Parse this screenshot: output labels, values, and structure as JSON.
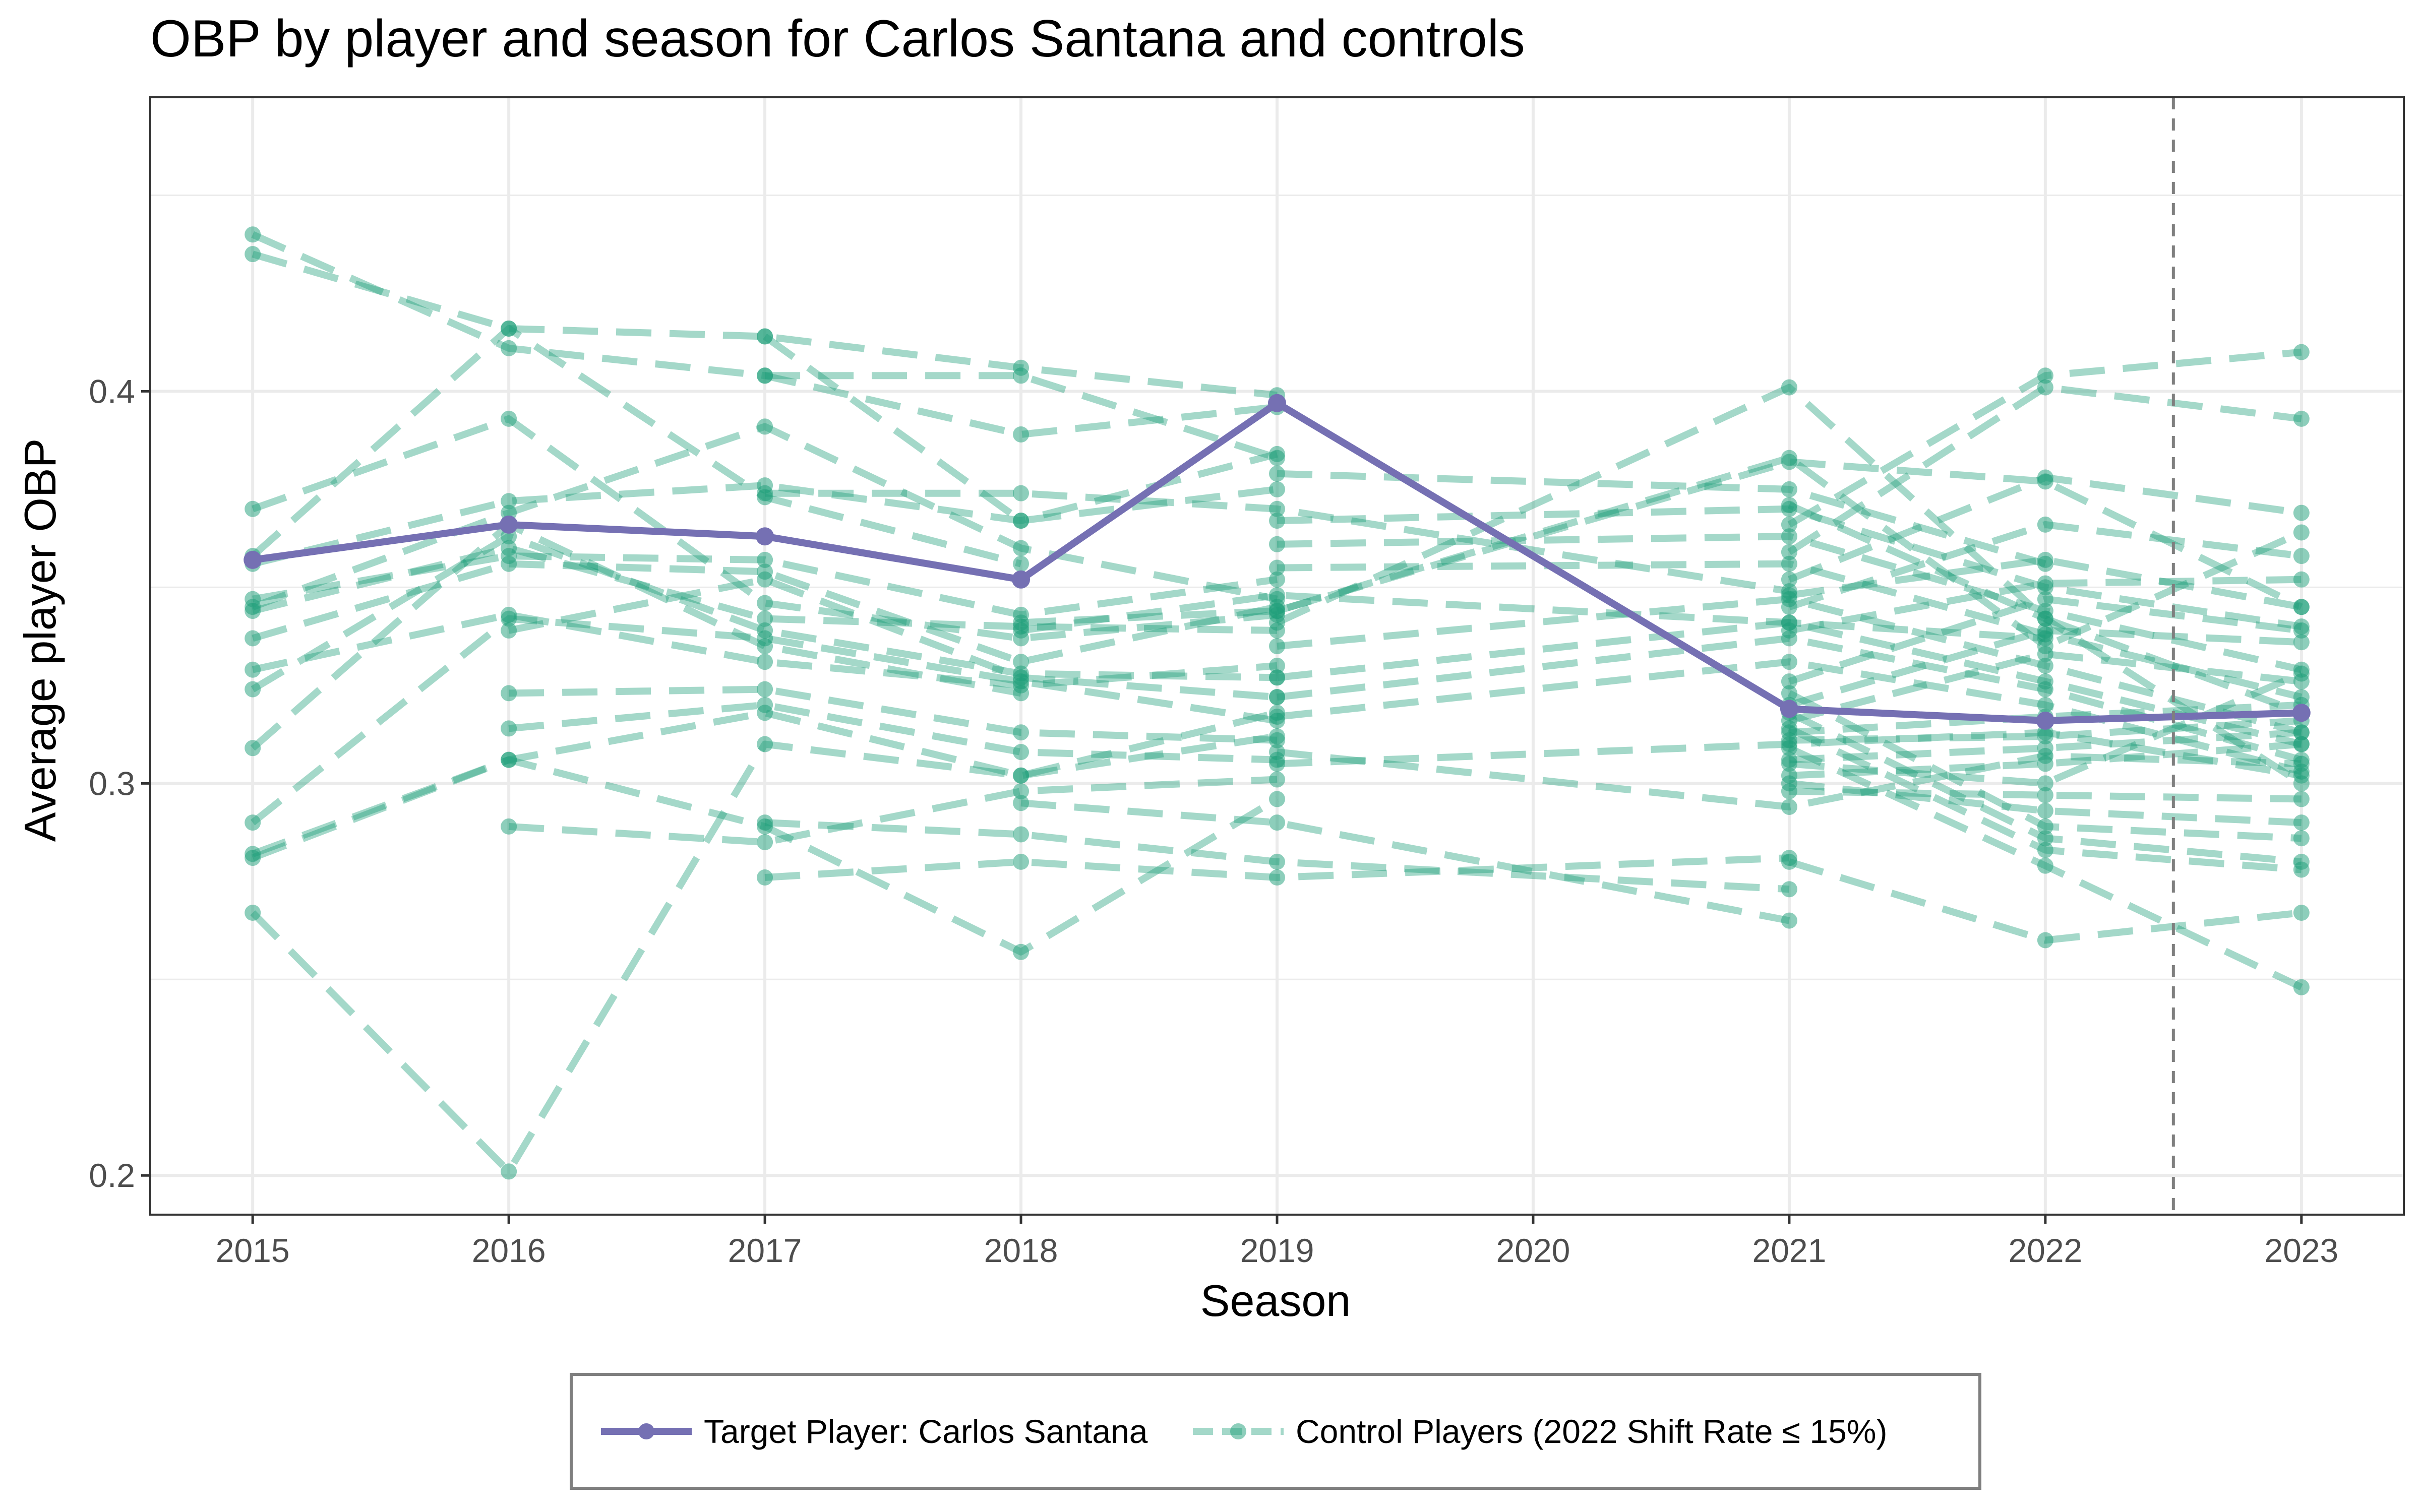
{
  "chart_data": {
    "type": "line",
    "title": "OBP by player and season for Carlos Santana and controls",
    "xlabel": "Season",
    "ylabel": "Average player OBP",
    "x": [
      2015,
      2016,
      2017,
      2018,
      2019,
      2020,
      2021,
      2022,
      2023
    ],
    "xlim": [
      2014.6,
      2023.4
    ],
    "ylim": [
      0.19,
      0.475
    ],
    "yticks": [
      0.2,
      0.3,
      0.4
    ],
    "ytick_labels": [
      "0.2",
      "0.3",
      "0.4"
    ],
    "xtick_labels": [
      "2015",
      "2016",
      "2017",
      "2018",
      "2019",
      "2020",
      "2021",
      "2022",
      "2023"
    ],
    "grid": true,
    "reference_line": {
      "x": 2022.5,
      "style": "dashed"
    },
    "legend_position": "bottom",
    "target": {
      "name": "Target Player: Carlos Santana",
      "color": "#7570b3",
      "points": [
        [
          2015,
          0.357
        ],
        [
          2016,
          0.366
        ],
        [
          2017,
          0.363
        ],
        [
          2018,
          0.352
        ],
        [
          2019,
          0.397
        ],
        [
          2021,
          0.319
        ],
        [
          2022,
          0.316
        ],
        [
          2023,
          0.318
        ]
      ]
    },
    "controls_label": "Control Players (2022 Shift Rate ≤ 15%)",
    "controls_color": "#1b9e77",
    "controls": [
      [
        [
          2015,
          0.44
        ],
        [
          2016,
          0.411
        ],
        [
          2017,
          0.404
        ],
        [
          2018,
          0.389
        ],
        [
          2019,
          0.396
        ]
      ],
      [
        [
          2015,
          0.435
        ],
        [
          2016,
          0.416
        ],
        [
          2017,
          0.414
        ],
        [
          2018,
          0.406
        ],
        [
          2019,
          0.399
        ]
      ],
      [
        [
          2015,
          0.37
        ],
        [
          2016,
          0.393
        ],
        [
          2017,
          0.346
        ],
        [
          2018,
          0.337
        ],
        [
          2019,
          0.343
        ]
      ],
      [
        [
          2015,
          0.358
        ],
        [
          2016,
          0.416
        ],
        [
          2017,
          0.373
        ],
        [
          2018,
          0.356
        ]
      ],
      [
        [
          2015,
          0.356
        ],
        [
          2016,
          0.372
        ],
        [
          2017,
          0.376
        ],
        [
          2018,
          0.367
        ],
        [
          2019,
          0.384
        ]
      ],
      [
        [
          2015,
          0.347
        ],
        [
          2016,
          0.358
        ],
        [
          2017,
          0.357
        ],
        [
          2018,
          0.343
        ],
        [
          2019,
          0.352
        ]
      ],
      [
        [
          2015,
          0.345
        ],
        [
          2016,
          0.369
        ],
        [
          2017,
          0.391
        ],
        [
          2018,
          0.36
        ],
        [
          2019,
          0.347
        ]
      ],
      [
        [
          2015,
          0.344
        ],
        [
          2016,
          0.36
        ],
        [
          2017,
          0.342
        ],
        [
          2018,
          0.34
        ],
        [
          2019,
          0.339
        ]
      ],
      [
        [
          2015,
          0.337
        ],
        [
          2016,
          0.356
        ],
        [
          2017,
          0.354
        ],
        [
          2018,
          0.331
        ],
        [
          2019,
          0.345
        ]
      ],
      [
        [
          2015,
          0.329
        ],
        [
          2016,
          0.343
        ],
        [
          2017,
          0.331
        ],
        [
          2018,
          0.325
        ],
        [
          2019,
          0.33
        ]
      ],
      [
        [
          2015,
          0.324
        ],
        [
          2016,
          0.363
        ],
        [
          2017,
          0.339
        ],
        [
          2018,
          0.328
        ],
        [
          2019,
          0.327
        ]
      ],
      [
        [
          2015,
          0.309
        ],
        [
          2016,
          0.366
        ],
        [
          2017,
          0.335
        ],
        [
          2018,
          0.323
        ]
      ],
      [
        [
          2015,
          0.29
        ],
        [
          2016,
          0.342
        ],
        [
          2017,
          0.337
        ],
        [
          2018,
          0.326
        ],
        [
          2019,
          0.316
        ]
      ],
      [
        [
          2015,
          0.282
        ],
        [
          2016,
          0.306
        ],
        [
          2017,
          0.318
        ],
        [
          2018,
          0.302
        ],
        [
          2019,
          0.318
        ]
      ],
      [
        [
          2015,
          0.281
        ],
        [
          2016,
          0.306
        ],
        [
          2017,
          0.289
        ],
        [
          2018,
          0.257
        ],
        [
          2019,
          0.296
        ]
      ],
      [
        [
          2015,
          0.267
        ],
        [
          2016,
          0.201
        ],
        [
          2017,
          0.31
        ],
        [
          2018,
          0.302
        ],
        [
          2019,
          0.312
        ]
      ],
      [
        [
          2016,
          0.339
        ],
        [
          2017,
          0.352
        ],
        [
          2018,
          0.327
        ],
        [
          2019,
          0.322
        ]
      ],
      [
        [
          2016,
          0.323
        ],
        [
          2017,
          0.324
        ],
        [
          2018,
          0.313
        ],
        [
          2019,
          0.311
        ]
      ],
      [
        [
          2016,
          0.314
        ],
        [
          2017,
          0.32
        ],
        [
          2018,
          0.308
        ],
        [
          2019,
          0.306
        ]
      ],
      [
        [
          2016,
          0.289
        ],
        [
          2017,
          0.285
        ],
        [
          2018,
          0.298
        ],
        [
          2019,
          0.301
        ]
      ],
      [
        [
          2017,
          0.404
        ],
        [
          2018,
          0.404
        ],
        [
          2019,
          0.383
        ]
      ],
      [
        [
          2017,
          0.414
        ],
        [
          2018,
          0.367
        ],
        [
          2019,
          0.375
        ]
      ],
      [
        [
          2017,
          0.276
        ],
        [
          2018,
          0.28
        ],
        [
          2019,
          0.276
        ],
        [
          2021,
          0.281
        ]
      ],
      [
        [
          2017,
          0.29
        ],
        [
          2018,
          0.287
        ],
        [
          2019,
          0.28
        ],
        [
          2021,
          0.273
        ]
      ],
      [
        [
          2017,
          0.374
        ],
        [
          2018,
          0.374
        ],
        [
          2019,
          0.37
        ],
        [
          2021,
          0.349
        ]
      ],
      [
        [
          2018,
          0.339
        ],
        [
          2019,
          0.348
        ],
        [
          2021,
          0.341
        ],
        [
          2022,
          0.337
        ]
      ],
      [
        [
          2018,
          0.295
        ],
        [
          2019,
          0.29
        ],
        [
          2021,
          0.265
        ]
      ],
      [
        [
          2018,
          0.341
        ],
        [
          2019,
          0.344
        ],
        [
          2021,
          0.383
        ],
        [
          2022,
          0.335
        ],
        [
          2023,
          0.364
        ]
      ],
      [
        [
          2019,
          0.379
        ],
        [
          2021,
          0.375
        ],
        [
          2022,
          0.356
        ]
      ],
      [
        [
          2019,
          0.367
        ],
        [
          2021,
          0.37
        ],
        [
          2022,
          0.35
        ],
        [
          2023,
          0.34
        ]
      ],
      [
        [
          2019,
          0.361
        ],
        [
          2021,
          0.363
        ],
        [
          2022,
          0.344
        ],
        [
          2023,
          0.329
        ]
      ],
      [
        [
          2019,
          0.355
        ],
        [
          2021,
          0.356
        ],
        [
          2022,
          0.338
        ],
        [
          2023,
          0.322
        ]
      ],
      [
        [
          2019,
          0.341
        ],
        [
          2021,
          0.401
        ],
        [
          2022,
          0.342
        ],
        [
          2023,
          0.318
        ]
      ],
      [
        [
          2019,
          0.335
        ],
        [
          2021,
          0.347
        ],
        [
          2022,
          0.33
        ],
        [
          2023,
          0.313
        ]
      ],
      [
        [
          2019,
          0.327
        ],
        [
          2021,
          0.341
        ],
        [
          2022,
          0.326
        ],
        [
          2023,
          0.31
        ]
      ],
      [
        [
          2019,
          0.322
        ],
        [
          2021,
          0.337
        ],
        [
          2022,
          0.324
        ],
        [
          2023,
          0.306
        ]
      ],
      [
        [
          2019,
          0.317
        ],
        [
          2021,
          0.331
        ],
        [
          2022,
          0.32
        ],
        [
          2023,
          0.303
        ]
      ],
      [
        [
          2019,
          0.305
        ],
        [
          2021,
          0.31
        ],
        [
          2022,
          0.313
        ],
        [
          2023,
          0.302
        ]
      ],
      [
        [
          2019,
          0.308
        ],
        [
          2021,
          0.294
        ],
        [
          2022,
          0.307
        ],
        [
          2023,
          0.305
        ]
      ],
      [
        [
          2019,
          0.344
        ],
        [
          2021,
          0.382
        ],
        [
          2022,
          0.377
        ],
        [
          2023,
          0.345
        ]
      ],
      [
        [
          2021,
          0.366
        ],
        [
          2022,
          0.404
        ],
        [
          2023,
          0.41
        ]
      ],
      [
        [
          2021,
          0.359
        ],
        [
          2022,
          0.401
        ],
        [
          2023,
          0.393
        ]
      ],
      [
        [
          2021,
          0.352
        ],
        [
          2022,
          0.378
        ],
        [
          2023,
          0.369
        ]
      ],
      [
        [
          2021,
          0.345
        ],
        [
          2022,
          0.366
        ],
        [
          2023,
          0.358
        ]
      ],
      [
        [
          2021,
          0.339
        ],
        [
          2022,
          0.351
        ],
        [
          2023,
          0.352
        ]
      ],
      [
        [
          2021,
          0.326
        ],
        [
          2022,
          0.347
        ],
        [
          2023,
          0.339
        ]
      ],
      [
        [
          2021,
          0.32
        ],
        [
          2022,
          0.339
        ],
        [
          2023,
          0.336
        ]
      ],
      [
        [
          2021,
          0.316
        ],
        [
          2022,
          0.333
        ],
        [
          2023,
          0.326
        ]
      ],
      [
        [
          2021,
          0.313
        ],
        [
          2022,
          0.317
        ],
        [
          2023,
          0.32
        ]
      ],
      [
        [
          2021,
          0.311
        ],
        [
          2022,
          0.312
        ],
        [
          2023,
          0.316
        ]
      ],
      [
        [
          2021,
          0.306
        ],
        [
          2022,
          0.309
        ],
        [
          2023,
          0.313
        ]
      ],
      [
        [
          2021,
          0.302
        ],
        [
          2022,
          0.305
        ],
        [
          2023,
          0.31
        ]
      ],
      [
        [
          2021,
          0.298
        ],
        [
          2022,
          0.297
        ],
        [
          2023,
          0.296
        ]
      ],
      [
        [
          2021,
          0.3
        ],
        [
          2022,
          0.293
        ],
        [
          2023,
          0.29
        ]
      ],
      [
        [
          2021,
          0.323
        ],
        [
          2022,
          0.289
        ],
        [
          2023,
          0.286
        ]
      ],
      [
        [
          2021,
          0.318
        ],
        [
          2022,
          0.286
        ],
        [
          2023,
          0.28
        ]
      ],
      [
        [
          2021,
          0.314
        ],
        [
          2022,
          0.283
        ],
        [
          2023,
          0.278
        ]
      ],
      [
        [
          2021,
          0.28
        ],
        [
          2022,
          0.26
        ],
        [
          2023,
          0.267
        ]
      ],
      [
        [
          2021,
          0.309
        ],
        [
          2022,
          0.279
        ],
        [
          2023,
          0.248
        ]
      ],
      [
        [
          2021,
          0.348
        ],
        [
          2022,
          0.357
        ],
        [
          2023,
          0.345
        ]
      ],
      [
        [
          2021,
          0.305
        ],
        [
          2022,
          0.3
        ],
        [
          2023,
          0.328
        ]
      ],
      [
        [
          2021,
          0.371
        ],
        [
          2022,
          0.342
        ],
        [
          2023,
          0.3
        ]
      ]
    ]
  }
}
